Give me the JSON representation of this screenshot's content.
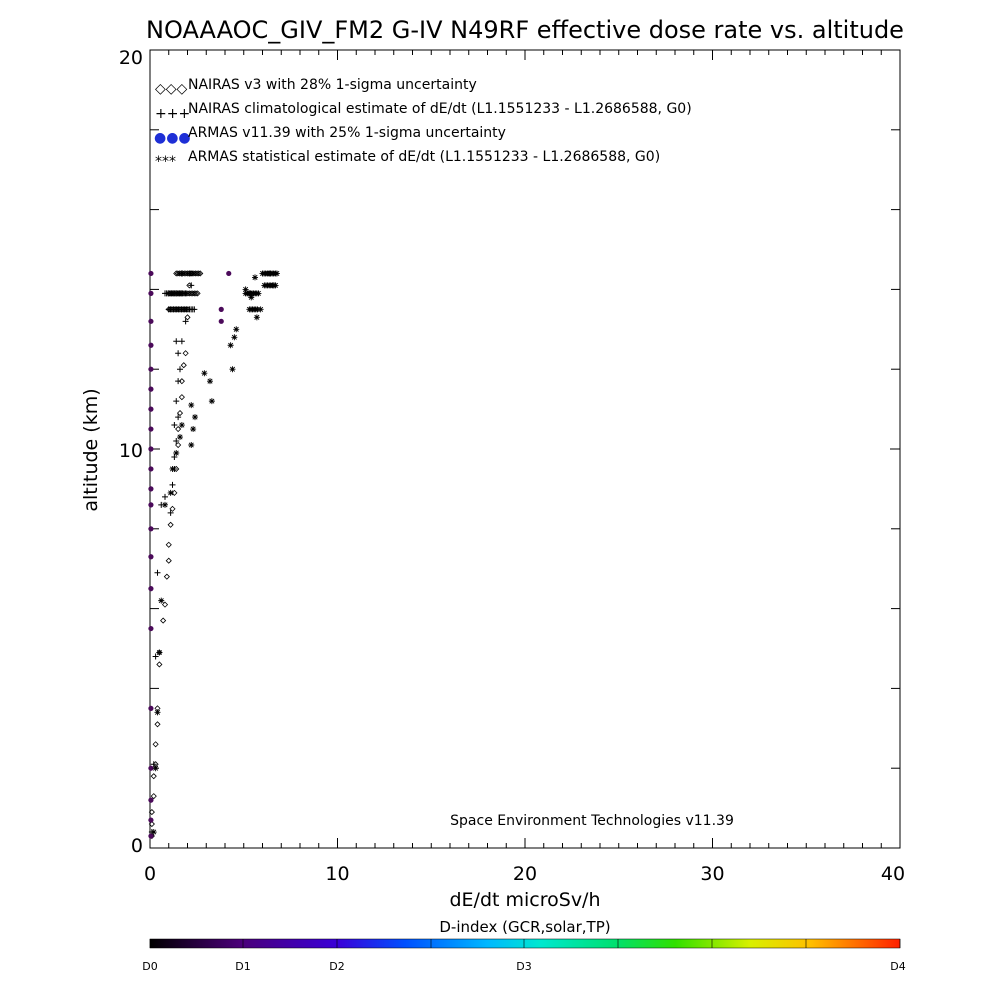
{
  "chart_data": {
    "type": "scatter",
    "title": "NOAAAOC_GIV_FM2 G-IV   N49RF  effective dose rate vs. altitude",
    "xlabel": "dE/dt microSv/h",
    "ylabel": "altitude (km)",
    "xlim": [
      0,
      40
    ],
    "ylim": [
      0,
      20
    ],
    "x_ticks": [
      "0",
      "10",
      "20",
      "30",
      "40"
    ],
    "y_ticks": [
      "0",
      "10",
      "20"
    ],
    "legend_position": "top-left",
    "legend": [
      {
        "symbol": "◇◇◇",
        "label": "NAIRAS v3 with 28% 1-sigma uncertainty"
      },
      {
        "symbol": "+++",
        "label": "NAIRAS climatological estimate of dE/dt (L1.1551233 - L1.2686588, G0)"
      },
      {
        "symbol": "●●●",
        "label": "ARMAS v11.39 with 25% 1-sigma uncertainty"
      },
      {
        "symbol": "***",
        "label": "ARMAS statistical estimate of dE/dt (L1.1551233 - L1.2686588, G0)"
      }
    ],
    "annotation": "Space Environment Technologies v11.39",
    "colorbar": {
      "title": "D-index (GCR,solar,TP)",
      "labels": [
        "D0",
        "D1",
        "D2",
        "D3",
        "D4"
      ]
    },
    "series": [
      {
        "name": "NAIRAS v3 with 28% 1-sigma uncertainty",
        "marker": "diamond",
        "color": "#000000",
        "points": [
          [
            0.1,
            0.3
          ],
          [
            0.1,
            0.6
          ],
          [
            0.1,
            0.9
          ],
          [
            0.2,
            1.3
          ],
          [
            0.2,
            1.8
          ],
          [
            0.3,
            2.1
          ],
          [
            0.3,
            2.6
          ],
          [
            0.4,
            3.1
          ],
          [
            0.4,
            3.5
          ],
          [
            0.5,
            4.6
          ],
          [
            0.5,
            4.9
          ],
          [
            0.7,
            5.7
          ],
          [
            0.8,
            6.1
          ],
          [
            0.9,
            6.8
          ],
          [
            1.0,
            7.2
          ],
          [
            1.0,
            7.6
          ],
          [
            1.1,
            8.1
          ],
          [
            1.2,
            8.5
          ],
          [
            1.3,
            8.9
          ],
          [
            1.4,
            9.5
          ],
          [
            1.5,
            10.1
          ],
          [
            1.5,
            10.5
          ],
          [
            1.6,
            10.9
          ],
          [
            1.7,
            11.3
          ],
          [
            1.7,
            11.7
          ],
          [
            1.8,
            12.1
          ],
          [
            1.9,
            12.4
          ],
          [
            2.0,
            13.3
          ],
          [
            2.1,
            14.1
          ],
          [
            2.2,
            14.4
          ]
        ]
      },
      {
        "name": "NAIRAS climatological estimate of dE/dt (L1.1551233 - L1.2686588, G0)",
        "marker": "plus",
        "color": "#000000",
        "points": [
          [
            0.1,
            0.4
          ],
          [
            0.2,
            2.1
          ],
          [
            0.3,
            4.8
          ],
          [
            0.4,
            6.9
          ],
          [
            0.6,
            8.6
          ],
          [
            0.8,
            8.8
          ],
          [
            1.1,
            8.4
          ],
          [
            1.2,
            9.1
          ],
          [
            1.3,
            9.5
          ],
          [
            1.3,
            9.8
          ],
          [
            1.4,
            10.2
          ],
          [
            1.3,
            10.6
          ],
          [
            1.5,
            10.8
          ],
          [
            1.4,
            11.2
          ],
          [
            1.5,
            11.7
          ],
          [
            1.6,
            12.0
          ],
          [
            1.5,
            12.4
          ],
          [
            1.7,
            12.7
          ],
          [
            1.4,
            12.7
          ],
          [
            1.9,
            13.2
          ],
          [
            1.9,
            13.9
          ],
          [
            2.2,
            14.1
          ],
          [
            1.7,
            14.4
          ],
          [
            2.1,
            14.4
          ]
        ]
      },
      {
        "name": "ARMAS v11.39 with 25% 1-sigma uncertainty",
        "marker": "dot",
        "color": "#4b0a5a",
        "points": [
          [
            0.05,
            0.3
          ],
          [
            0.05,
            0.7
          ],
          [
            0.05,
            1.2
          ],
          [
            0.05,
            2.0
          ],
          [
            0.05,
            3.5
          ],
          [
            0.05,
            5.5
          ],
          [
            0.05,
            6.5
          ],
          [
            0.05,
            7.3
          ],
          [
            0.05,
            8.0
          ],
          [
            0.05,
            8.6
          ],
          [
            0.05,
            9.0
          ],
          [
            0.05,
            9.5
          ],
          [
            0.05,
            10.0
          ],
          [
            0.05,
            10.5
          ],
          [
            0.05,
            11.0
          ],
          [
            0.05,
            11.5
          ],
          [
            0.05,
            12.0
          ],
          [
            0.05,
            12.6
          ],
          [
            0.05,
            13.2
          ],
          [
            0.05,
            13.9
          ],
          [
            0.05,
            14.4
          ],
          [
            4.2,
            14.4
          ],
          [
            3.8,
            13.5
          ],
          [
            3.8,
            13.2
          ]
        ]
      },
      {
        "name": "ARMAS statistical estimate of dE/dt (L1.1551233 - L1.2686588, G0)",
        "marker": "asterisk",
        "color": "#000000",
        "points": [
          [
            0.2,
            0.4
          ],
          [
            0.3,
            2.0
          ],
          [
            0.4,
            3.4
          ],
          [
            0.5,
            4.9
          ],
          [
            0.6,
            6.2
          ],
          [
            0.8,
            8.6
          ],
          [
            1.1,
            8.9
          ],
          [
            1.2,
            9.5
          ],
          [
            1.4,
            9.9
          ],
          [
            1.6,
            10.3
          ],
          [
            1.7,
            10.6
          ],
          [
            2.2,
            10.1
          ],
          [
            2.3,
            10.5
          ],
          [
            2.4,
            10.8
          ],
          [
            2.2,
            11.1
          ],
          [
            3.3,
            11.2
          ],
          [
            3.2,
            11.7
          ],
          [
            2.9,
            11.9
          ],
          [
            4.4,
            12.0
          ],
          [
            4.3,
            12.6
          ],
          [
            4.5,
            12.8
          ],
          [
            4.6,
            13.0
          ],
          [
            5.7,
            13.3
          ],
          [
            5.4,
            13.8
          ],
          [
            5.9,
            13.5
          ],
          [
            5.1,
            14.0
          ],
          [
            5.6,
            14.3
          ],
          [
            6.4,
            14.4
          ],
          [
            6.6,
            14.1
          ],
          [
            5.3,
            13.9
          ]
        ]
      }
    ],
    "dense_segments": [
      {
        "name": "NAIRAS v3 with 28% 1-sigma uncertainty",
        "marker": "diamond",
        "x": [
          1.0,
          2.6
        ],
        "y": 13.9
      },
      {
        "name": "NAIRAS v3 with 28% 1-sigma uncertainty",
        "marker": "diamond",
        "x": [
          1.4,
          2.7
        ],
        "y": 14.4
      },
      {
        "name": "NAIRAS v3 with 28% 1-sigma uncertainty",
        "marker": "diamond",
        "x": [
          1.0,
          2.1
        ],
        "y": 13.5
      },
      {
        "name": "NAIRAS climatological estimate of dE/dt (L1.1551233 - L1.2686588, G0)",
        "marker": "plus",
        "x": [
          0.8,
          1.8
        ],
        "y": 13.9
      },
      {
        "name": "NAIRAS climatological estimate of dE/dt (L1.1551233 - L1.2686588, G0)",
        "marker": "plus",
        "x": [
          1.0,
          2.4
        ],
        "y": 13.5
      },
      {
        "name": "ARMAS statistical estimate of dE/dt (L1.1551233 - L1.2686588, G0)",
        "marker": "asterisk",
        "x": [
          6.0,
          6.8
        ],
        "y": 14.4
      },
      {
        "name": "ARMAS statistical estimate of dE/dt (L1.1551233 - L1.2686588, G0)",
        "marker": "asterisk",
        "x": [
          6.1,
          6.7
        ],
        "y": 14.1
      },
      {
        "name": "ARMAS statistical estimate of dE/dt (L1.1551233 - L1.2686588, G0)",
        "marker": "asterisk",
        "x": [
          5.1,
          5.8
        ],
        "y": 13.9
      },
      {
        "name": "ARMAS statistical estimate of dE/dt (L1.1551233 - L1.2686588, G0)",
        "marker": "asterisk",
        "x": [
          5.3,
          5.8
        ],
        "y": 13.5
      }
    ]
  }
}
